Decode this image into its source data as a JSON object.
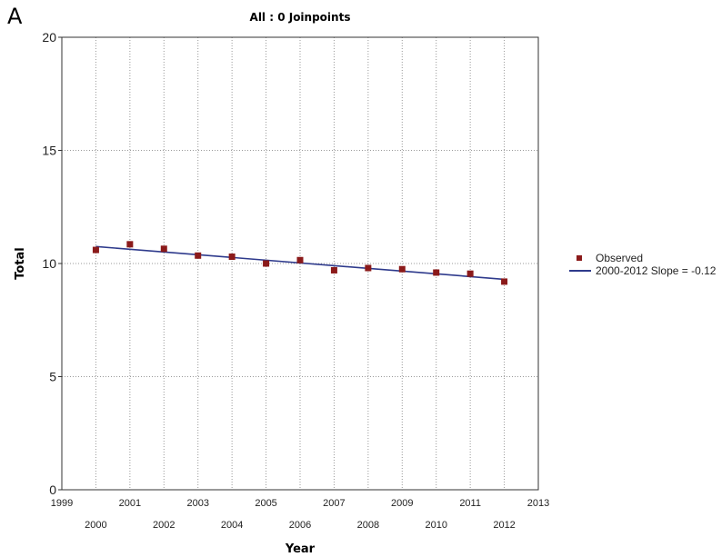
{
  "panel_label": "A",
  "chart_data": {
    "type": "scatter",
    "title": "All : 0 Joinpoints",
    "xlabel": "Year",
    "ylabel": "Total",
    "xlim": [
      1999,
      2013
    ],
    "ylim": [
      0,
      20
    ],
    "x_ticks_top": [
      "1999",
      "2001",
      "2003",
      "2005",
      "2007",
      "2009",
      "2011",
      "2013"
    ],
    "x_ticks_bottom": [
      "2000",
      "2002",
      "2004",
      "2006",
      "2008",
      "2010",
      "2012"
    ],
    "y_ticks": [
      "0",
      "5",
      "10",
      "15",
      "20"
    ],
    "grid": true,
    "series": [
      {
        "name": "Observed",
        "kind": "scatter",
        "color": "#8b1a1a",
        "x": [
          2000,
          2001,
          2002,
          2003,
          2004,
          2005,
          2006,
          2007,
          2008,
          2009,
          2010,
          2011,
          2012
        ],
        "y": [
          10.6,
          10.85,
          10.65,
          10.35,
          10.3,
          10.0,
          10.15,
          9.7,
          9.8,
          9.75,
          9.6,
          9.55,
          9.2
        ]
      },
      {
        "name": "2000-2012 Slope  = -0.12",
        "kind": "line",
        "color": "#2e3a8c",
        "x": [
          2000,
          2012
        ],
        "y": [
          10.75,
          9.3
        ]
      }
    ],
    "legend_position": "right"
  }
}
